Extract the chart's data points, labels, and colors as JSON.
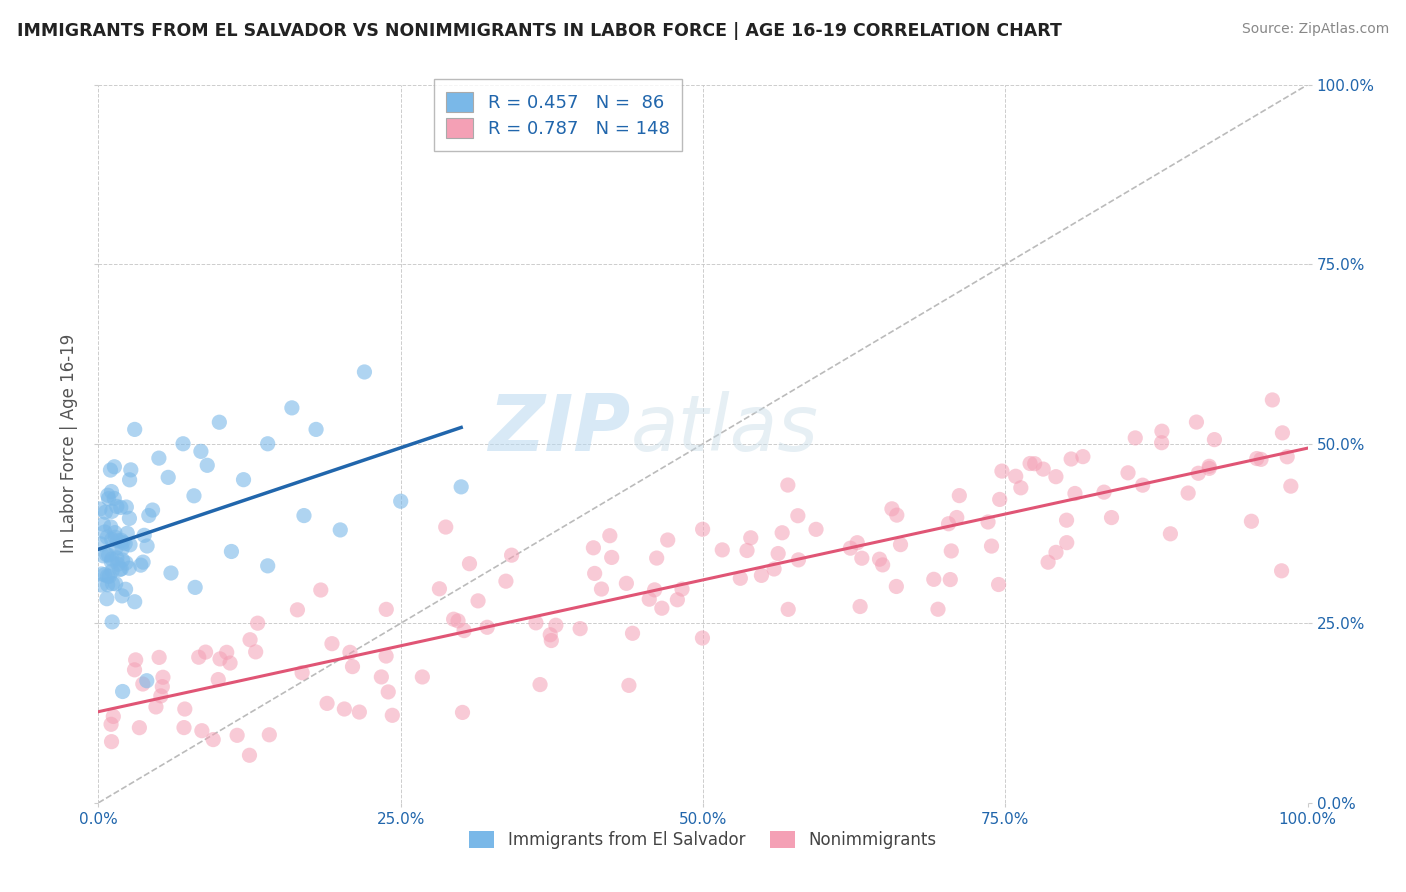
{
  "title": "IMMIGRANTS FROM EL SALVADOR VS NONIMMIGRANTS IN LABOR FORCE | AGE 16-19 CORRELATION CHART",
  "source": "Source: ZipAtlas.com",
  "ylabel": "In Labor Force | Age 16-19",
  "xlim": [
    0.0,
    1.0
  ],
  "ylim": [
    0.0,
    1.0
  ],
  "ytick_positions": [
    0.0,
    0.25,
    0.5,
    0.75,
    1.0
  ],
  "xtick_positions": [
    0.0,
    0.25,
    0.5,
    0.75,
    1.0
  ],
  "blue_R": 0.457,
  "blue_N": 86,
  "pink_R": 0.787,
  "pink_N": 148,
  "blue_color": "#7ab8e8",
  "blue_line_color": "#2166ac",
  "pink_color": "#f4a0b5",
  "pink_line_color": "#e05575",
  "dashed_line_color": "#aaaaaa",
  "watermark_zip": "ZIP",
  "watermark_atlas": "atlas",
  "background_color": "#ffffff",
  "grid_color": "#c8c8c8",
  "legend_text_color": "#2166ac",
  "tick_color": "#2166ac",
  "title_color": "#222222",
  "label_color": "#555555"
}
